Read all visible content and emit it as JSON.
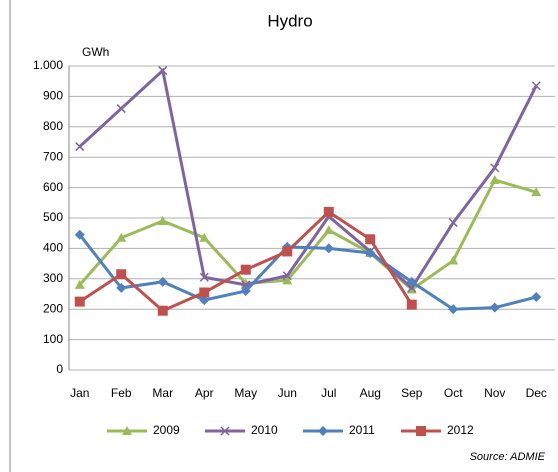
{
  "chart_data": {
    "type": "line",
    "title": "Hydro",
    "y_label": "GWh",
    "source": "Source: ADMIE",
    "categories": [
      "Jan",
      "Feb",
      "Mar",
      "Apr",
      "May",
      "Jun",
      "Jul",
      "Aug",
      "Sep",
      "Oct",
      "Nov",
      "Dec"
    ],
    "series": [
      {
        "name": "2009",
        "color": "#9bbb59",
        "marker": "triangle",
        "values": [
          280,
          435,
          490,
          435,
          285,
          295,
          460,
          385,
          265,
          360,
          625,
          585
        ]
      },
      {
        "name": "2010",
        "color": "#8064a2",
        "marker": "x",
        "values": [
          735,
          860,
          985,
          305,
          280,
          310,
          505,
          390,
          270,
          485,
          665,
          935
        ]
      },
      {
        "name": "2011",
        "color": "#4f81bd",
        "marker": "diamond",
        "values": [
          445,
          270,
          290,
          230,
          260,
          405,
          400,
          385,
          290,
          200,
          205,
          240
        ]
      },
      {
        "name": "2012",
        "color": "#c0504d",
        "marker": "square",
        "values": [
          225,
          315,
          195,
          255,
          330,
          390,
          520,
          430,
          215,
          null,
          null,
          null
        ]
      }
    ],
    "ylim": [
      0,
      1000
    ],
    "yticks": [
      0,
      100,
      200,
      300,
      400,
      500,
      600,
      700,
      800,
      900,
      {
        "value": 1000,
        "label": "1.000"
      }
    ],
    "grid": true,
    "legend": "bottom"
  }
}
